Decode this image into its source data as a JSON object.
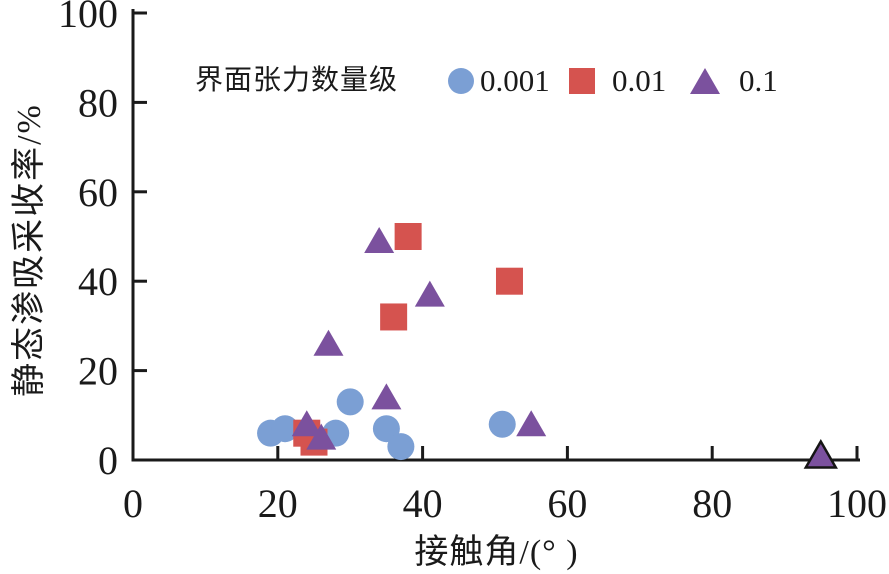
{
  "chart_data": {
    "type": "scatter",
    "title": "",
    "xlabel": "接触角/(°  )",
    "ylabel": "静态渗吸采收率/%",
    "xlim": [
      0,
      100
    ],
    "ylim": [
      0,
      100
    ],
    "xticks": [
      0,
      20,
      40,
      60,
      80,
      100
    ],
    "yticks": [
      0,
      20,
      40,
      60,
      80,
      100
    ],
    "grid": false,
    "axis_color": "#1a1a1a",
    "tick_label_color": "#1a1a1a",
    "legend": {
      "title": "界面张力数量级",
      "position": "top-inside"
    },
    "series": [
      {
        "name": "0.001",
        "marker": "circle",
        "color": "#7B9FD4",
        "points": [
          {
            "x": 19,
            "y": 6
          },
          {
            "x": 21,
            "y": 7
          },
          {
            "x": 28,
            "y": 6
          },
          {
            "x": 30,
            "y": 13
          },
          {
            "x": 35,
            "y": 7
          },
          {
            "x": 37,
            "y": 3
          },
          {
            "x": 51,
            "y": 8
          }
        ]
      },
      {
        "name": "0.01",
        "marker": "square",
        "color": "#D5534F",
        "points": [
          {
            "x": 24,
            "y": 6
          },
          {
            "x": 25,
            "y": 4
          },
          {
            "x": 36,
            "y": 32
          },
          {
            "x": 38,
            "y": 50
          },
          {
            "x": 52,
            "y": 40
          }
        ]
      },
      {
        "name": "0.1",
        "marker": "triangle",
        "color": "#7B519E",
        "points": [
          {
            "x": 24,
            "y": 8
          },
          {
            "x": 26,
            "y": 5
          },
          {
            "x": 27,
            "y": 26
          },
          {
            "x": 34,
            "y": 49
          },
          {
            "x": 35,
            "y": 14
          },
          {
            "x": 41,
            "y": 37
          },
          {
            "x": 55,
            "y": 8
          },
          {
            "x": 95,
            "y": 1,
            "outlined": true
          }
        ]
      }
    ],
    "outline_color": "#151515"
  }
}
